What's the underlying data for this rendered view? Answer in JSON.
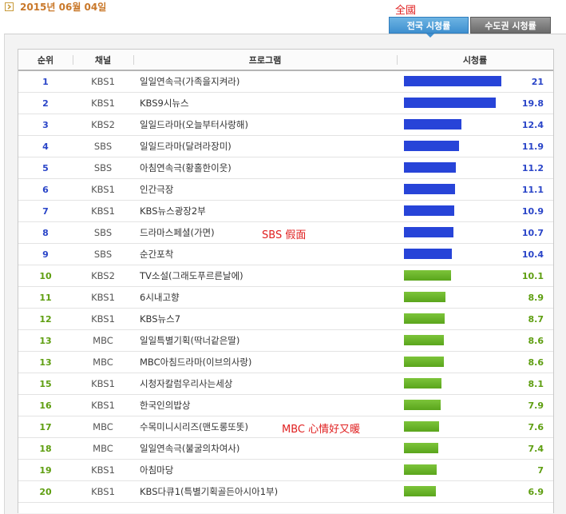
{
  "header": {
    "date": "2015년 06월 04일",
    "region_label": "全國"
  },
  "tabs": [
    {
      "label": "전국 시청률",
      "active": true
    },
    {
      "label": "수도권 시청률",
      "active": false
    }
  ],
  "columns": {
    "rank": "순위",
    "channel": "채널",
    "program": "프로그램",
    "rating": "시청률"
  },
  "colors": {
    "top_bar": "#2744d8",
    "other_bar": "#5aa51c",
    "top_text": "#2a45c8",
    "other_text": "#5e9e10"
  },
  "rows": [
    {
      "rank": "1",
      "channel": "KBS1",
      "program": "일일연속극(가족을지켜라)",
      "rating": "21",
      "top": true
    },
    {
      "rank": "2",
      "channel": "KBS1",
      "program": "KBS9시뉴스",
      "rating": "19.8",
      "top": true
    },
    {
      "rank": "3",
      "channel": "KBS2",
      "program": "일일드라마(오늘부터사랑해)",
      "rating": "12.4",
      "top": true
    },
    {
      "rank": "4",
      "channel": "SBS",
      "program": "일일드라마(달려라장미)",
      "rating": "11.9",
      "top": true
    },
    {
      "rank": "5",
      "channel": "SBS",
      "program": "아침연속극(황홀한이웃)",
      "rating": "11.2",
      "top": true
    },
    {
      "rank": "6",
      "channel": "KBS1",
      "program": "인간극장",
      "rating": "11.1",
      "top": true
    },
    {
      "rank": "7",
      "channel": "KBS1",
      "program": "KBS뉴스광장2부",
      "rating": "10.9",
      "top": true
    },
    {
      "rank": "8",
      "channel": "SBS",
      "program": "드라마스페셜(가면)",
      "rating": "10.7",
      "top": true,
      "note": "SBS 假面"
    },
    {
      "rank": "9",
      "channel": "SBS",
      "program": "순간포착",
      "rating": "10.4",
      "top": true
    },
    {
      "rank": "10",
      "channel": "KBS2",
      "program": "TV소설(그래도푸르른날에)",
      "rating": "10.1",
      "top": false
    },
    {
      "rank": "11",
      "channel": "KBS1",
      "program": "6시내고향",
      "rating": "8.9",
      "top": false
    },
    {
      "rank": "12",
      "channel": "KBS1",
      "program": "KBS뉴스7",
      "rating": "8.7",
      "top": false
    },
    {
      "rank": "13",
      "channel": "MBC",
      "program": "일일특별기획(딱너같은딸)",
      "rating": "8.6",
      "top": false
    },
    {
      "rank": "13",
      "channel": "MBC",
      "program": "MBC아침드라마(이브의사랑)",
      "rating": "8.6",
      "top": false
    },
    {
      "rank": "15",
      "channel": "KBS1",
      "program": "시청자칼럼우리사는세상",
      "rating": "8.1",
      "top": false
    },
    {
      "rank": "16",
      "channel": "KBS1",
      "program": "한국인의밥상",
      "rating": "7.9",
      "top": false
    },
    {
      "rank": "17",
      "channel": "MBC",
      "program": "수목미니시리즈(맨도롱또똣)",
      "rating": "7.6",
      "top": false,
      "note": "MBC 心情好又暖"
    },
    {
      "rank": "18",
      "channel": "MBC",
      "program": "일일연속극(불굴의차여사)",
      "rating": "7.4",
      "top": false
    },
    {
      "rank": "19",
      "channel": "KBS1",
      "program": "아침마당",
      "rating": "7",
      "top": false
    },
    {
      "rank": "20",
      "channel": "KBS1",
      "program": "KBS다큐1(특별기획골든아시아1부)",
      "rating": "6.9",
      "top": false
    }
  ]
}
